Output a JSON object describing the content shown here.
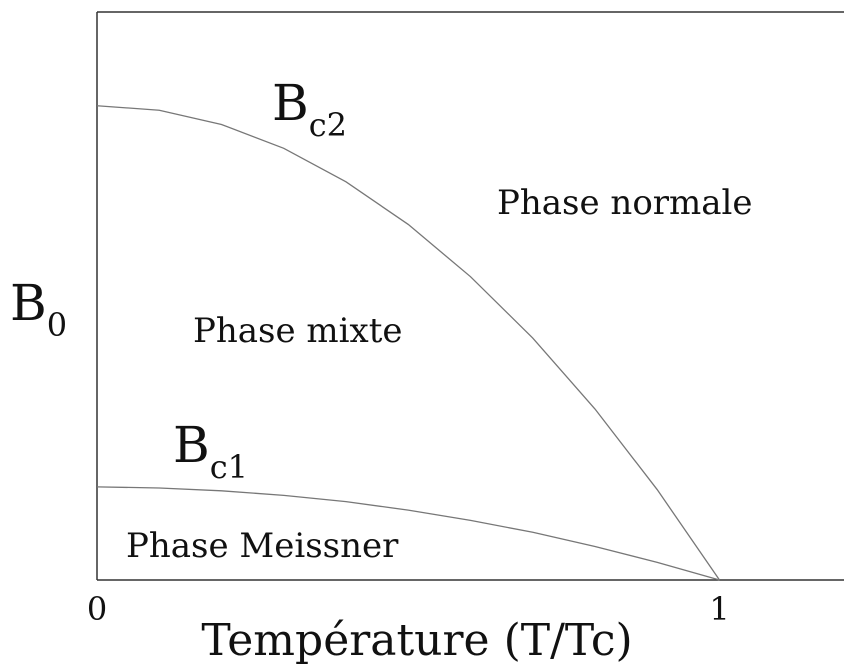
{
  "chart_data": {
    "type": "line",
    "x_label": "Température (T/Tc)",
    "y_label": {
      "base": "B",
      "sub": "0"
    },
    "xlim": [
      0,
      1.2
    ],
    "ylim": [
      0,
      1
    ],
    "xticks": [
      0,
      1
    ],
    "x": [
      0,
      0.1,
      0.2,
      0.3,
      0.4,
      0.5,
      0.6,
      0.7,
      0.8,
      0.9,
      1.0
    ],
    "series": [
      {
        "label": {
          "base": "B",
          "sub": "c2"
        },
        "color": "#777777",
        "values": [
          0.835,
          0.827,
          0.802,
          0.76,
          0.701,
          0.626,
          0.534,
          0.426,
          0.301,
          0.159,
          0
        ]
      },
      {
        "label": {
          "base": "B",
          "sub": "c1"
        },
        "color": "#777777",
        "values": [
          0.164,
          0.162,
          0.157,
          0.149,
          0.138,
          0.123,
          0.105,
          0.084,
          0.059,
          0.031,
          0
        ]
      }
    ],
    "annotations": [
      "Phase normale",
      "Phase mixte",
      "Phase Meissner"
    ]
  }
}
